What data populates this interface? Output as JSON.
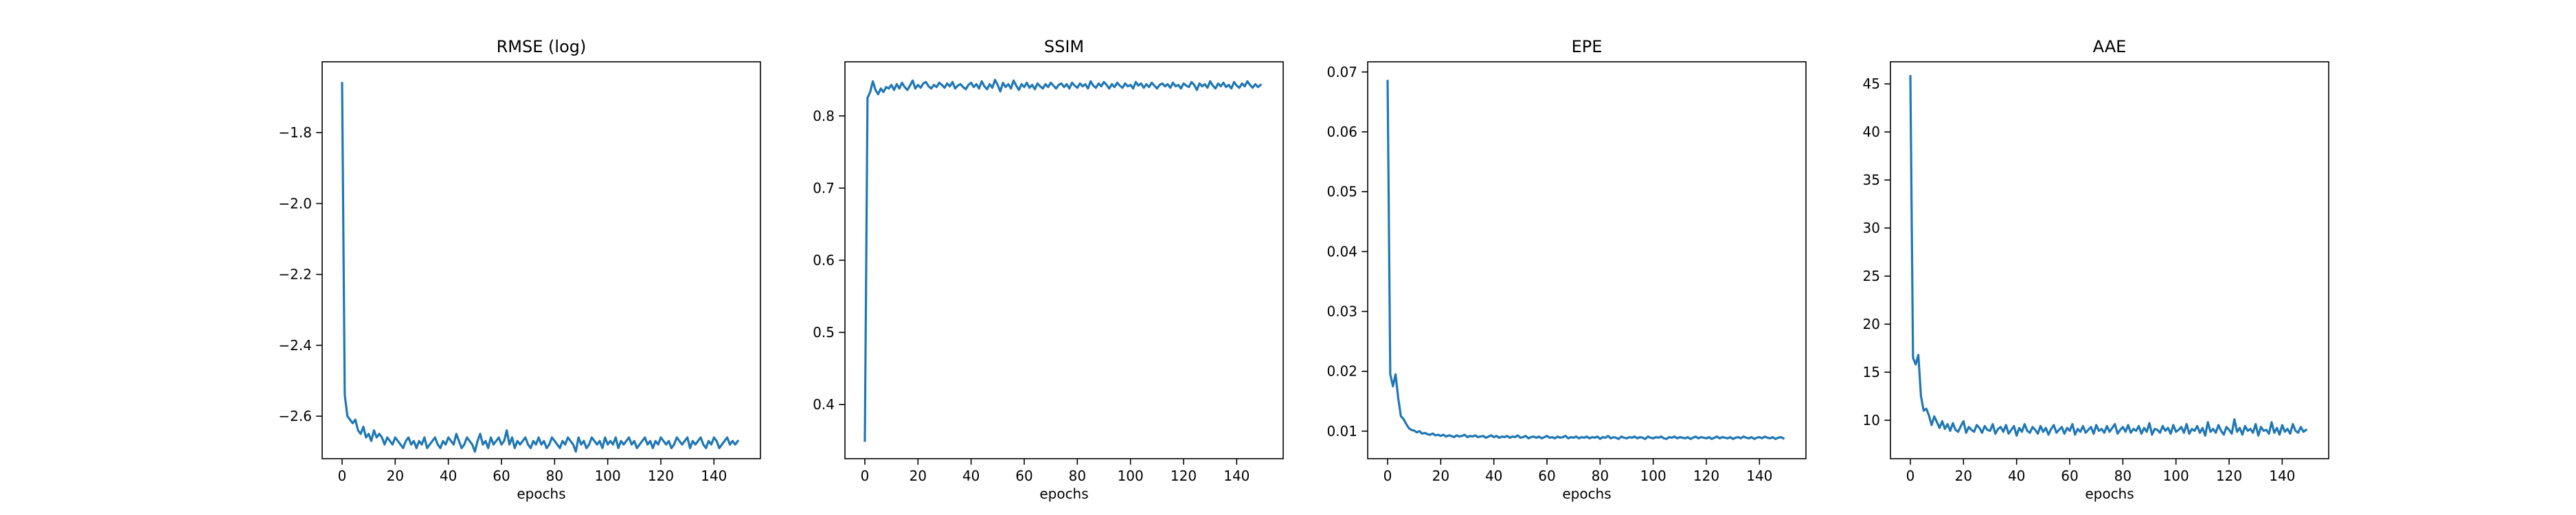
{
  "figure": {
    "background": "#ffffff",
    "line_color": "#1f77b4"
  },
  "chart_data": [
    {
      "type": "line",
      "title": "RMSE (log)",
      "xlabel": "epochs",
      "ylabel": "",
      "xlim": [
        -7.5,
        157.5
      ],
      "ylim": [
        -2.72,
        -1.6
      ],
      "xticks": [
        0,
        20,
        40,
        60,
        80,
        100,
        120,
        140
      ],
      "yticks": [
        -2.6,
        -2.4,
        -2.2,
        -2.0,
        -1.8
      ],
      "yticklabels": [
        "−2.6",
        "−2.4",
        "−2.2",
        "−2.0",
        "−1.8"
      ],
      "grid": false,
      "series": [
        {
          "values": [
            -1.66,
            -2.54,
            -2.6,
            -2.61,
            -2.62,
            -2.61,
            -2.64,
            -2.65,
            -2.63,
            -2.66,
            -2.65,
            -2.67,
            -2.64,
            -2.66,
            -2.65,
            -2.66,
            -2.68,
            -2.66,
            -2.67,
            -2.68,
            -2.66,
            -2.67,
            -2.68,
            -2.69,
            -2.67,
            -2.66,
            -2.68,
            -2.67,
            -2.69,
            -2.67,
            -2.68,
            -2.66,
            -2.69,
            -2.68,
            -2.67,
            -2.66,
            -2.68,
            -2.69,
            -2.67,
            -2.68,
            -2.66,
            -2.67,
            -2.68,
            -2.65,
            -2.67,
            -2.69,
            -2.68,
            -2.66,
            -2.67,
            -2.68,
            -2.7,
            -2.67,
            -2.65,
            -2.68,
            -2.67,
            -2.69,
            -2.66,
            -2.68,
            -2.67,
            -2.66,
            -2.68,
            -2.67,
            -2.64,
            -2.68,
            -2.66,
            -2.69,
            -2.67,
            -2.68,
            -2.67,
            -2.66,
            -2.68,
            -2.69,
            -2.67,
            -2.68,
            -2.66,
            -2.68,
            -2.67,
            -2.69,
            -2.68,
            -2.66,
            -2.67,
            -2.68,
            -2.69,
            -2.67,
            -2.68,
            -2.66,
            -2.67,
            -2.68,
            -2.7,
            -2.66,
            -2.68,
            -2.67,
            -2.69,
            -2.68,
            -2.66,
            -2.67,
            -2.68,
            -2.67,
            -2.69,
            -2.66,
            -2.68,
            -2.67,
            -2.68,
            -2.66,
            -2.69,
            -2.67,
            -2.68,
            -2.67,
            -2.66,
            -2.68,
            -2.67,
            -2.69,
            -2.68,
            -2.67,
            -2.66,
            -2.68,
            -2.67,
            -2.69,
            -2.67,
            -2.68,
            -2.66,
            -2.67,
            -2.68,
            -2.67,
            -2.69,
            -2.68,
            -2.66,
            -2.67,
            -2.68,
            -2.67,
            -2.66,
            -2.69,
            -2.67,
            -2.68,
            -2.67,
            -2.66,
            -2.68,
            -2.69,
            -2.67,
            -2.68,
            -2.66,
            -2.67,
            -2.69,
            -2.68,
            -2.67,
            -2.66,
            -2.68,
            -2.67,
            -2.68,
            -2.67
          ]
        }
      ]
    },
    {
      "type": "line",
      "title": "SSIM",
      "xlabel": "epochs",
      "ylabel": "",
      "xlim": [
        -7.5,
        157.5
      ],
      "ylim": [
        0.325,
        0.875
      ],
      "xticks": [
        0,
        20,
        40,
        60,
        80,
        100,
        120,
        140
      ],
      "yticks": [
        0.4,
        0.5,
        0.6,
        0.7,
        0.8
      ],
      "yticklabels": [
        "0.4",
        "0.5",
        "0.6",
        "0.7",
        "0.8"
      ],
      "grid": false,
      "series": [
        {
          "values": [
            0.35,
            0.825,
            0.833,
            0.848,
            0.836,
            0.83,
            0.838,
            0.833,
            0.84,
            0.838,
            0.843,
            0.836,
            0.844,
            0.838,
            0.846,
            0.84,
            0.836,
            0.842,
            0.849,
            0.838,
            0.843,
            0.839,
            0.845,
            0.847,
            0.841,
            0.838,
            0.843,
            0.84,
            0.846,
            0.843,
            0.839,
            0.845,
            0.841,
            0.847,
            0.838,
            0.842,
            0.844,
            0.84,
            0.837,
            0.843,
            0.846,
            0.84,
            0.844,
            0.838,
            0.848,
            0.841,
            0.837,
            0.844,
            0.839,
            0.85,
            0.843,
            0.834,
            0.846,
            0.84,
            0.844,
            0.838,
            0.849,
            0.842,
            0.836,
            0.844,
            0.84,
            0.846,
            0.839,
            0.843,
            0.837,
            0.845,
            0.841,
            0.838,
            0.844,
            0.84,
            0.846,
            0.842,
            0.838,
            0.843,
            0.845,
            0.84,
            0.844,
            0.838,
            0.846,
            0.842,
            0.839,
            0.845,
            0.841,
            0.844,
            0.838,
            0.848,
            0.842,
            0.839,
            0.845,
            0.841,
            0.847,
            0.843,
            0.838,
            0.844,
            0.84,
            0.846,
            0.842,
            0.839,
            0.845,
            0.841,
            0.843,
            0.838,
            0.847,
            0.842,
            0.845,
            0.839,
            0.844,
            0.84,
            0.846,
            0.842,
            0.838,
            0.843,
            0.845,
            0.841,
            0.844,
            0.839,
            0.846,
            0.841,
            0.843,
            0.838,
            0.845,
            0.842,
            0.84,
            0.847,
            0.843,
            0.836,
            0.845,
            0.841,
            0.844,
            0.839,
            0.848,
            0.842,
            0.838,
            0.845,
            0.841,
            0.846,
            0.84,
            0.843,
            0.838,
            0.847,
            0.842,
            0.839,
            0.845,
            0.841,
            0.848,
            0.843,
            0.839,
            0.844,
            0.84,
            0.843
          ]
        }
      ]
    },
    {
      "type": "line",
      "title": "EPE",
      "xlabel": "epochs",
      "ylabel": "",
      "xlim": [
        -7.5,
        157.5
      ],
      "ylim": [
        0.0054,
        0.0717
      ],
      "xticks": [
        0,
        20,
        40,
        60,
        80,
        100,
        120,
        140
      ],
      "yticks": [
        0.01,
        0.02,
        0.03,
        0.04,
        0.05,
        0.06,
        0.07
      ],
      "yticklabels": [
        "0.01",
        "0.02",
        "0.03",
        "0.04",
        "0.05",
        "0.06",
        "0.07"
      ],
      "grid": false,
      "series": [
        {
          "values": [
            0.0685,
            0.0195,
            0.0175,
            0.0195,
            0.0155,
            0.0125,
            0.012,
            0.0112,
            0.0105,
            0.0102,
            0.0101,
            0.0098,
            0.01,
            0.0096,
            0.0097,
            0.0095,
            0.0094,
            0.0096,
            0.0093,
            0.0094,
            0.0092,
            0.0094,
            0.0091,
            0.0093,
            0.0092,
            0.009,
            0.0093,
            0.0091,
            0.0092,
            0.0094,
            0.009,
            0.0092,
            0.0091,
            0.0093,
            0.009,
            0.0091,
            0.0092,
            0.0089,
            0.0091,
            0.0093,
            0.009,
            0.0092,
            0.0089,
            0.0091,
            0.009,
            0.0092,
            0.0089,
            0.0091,
            0.009,
            0.0093,
            0.0089,
            0.009,
            0.0092,
            0.0088,
            0.009,
            0.0091,
            0.0089,
            0.0091,
            0.0088,
            0.009,
            0.0092,
            0.0089,
            0.009,
            0.0088,
            0.0091,
            0.0089,
            0.009,
            0.0092,
            0.0088,
            0.009,
            0.0089,
            0.0091,
            0.0088,
            0.009,
            0.0089,
            0.0091,
            0.0088,
            0.009,
            0.0089,
            0.0091,
            0.0087,
            0.009,
            0.0089,
            0.0092,
            0.0088,
            0.009,
            0.0089,
            0.0087,
            0.0091,
            0.0089,
            0.0088,
            0.009,
            0.0089,
            0.0091,
            0.0088,
            0.009,
            0.0089,
            0.0087,
            0.0091,
            0.0089,
            0.0088,
            0.009,
            0.0089,
            0.0091,
            0.0088,
            0.0087,
            0.009,
            0.0089,
            0.0091,
            0.0088,
            0.009,
            0.0089,
            0.0088,
            0.009,
            0.0087,
            0.0089,
            0.0091,
            0.0088,
            0.009,
            0.0089,
            0.0088,
            0.009,
            0.0087,
            0.0089,
            0.0091,
            0.0088,
            0.009,
            0.0089,
            0.0088,
            0.009,
            0.0087,
            0.0089,
            0.009,
            0.0088,
            0.0091,
            0.0089,
            0.0088,
            0.009,
            0.0087,
            0.0089,
            0.009,
            0.0088,
            0.0091,
            0.0089,
            0.0088,
            0.009,
            0.0087,
            0.0089,
            0.009,
            0.0088
          ]
        }
      ]
    },
    {
      "type": "line",
      "title": "AAE",
      "xlabel": "epochs",
      "ylabel": "",
      "xlim": [
        -7.5,
        157.5
      ],
      "ylim": [
        6.0,
        47.3
      ],
      "xticks": [
        0,
        20,
        40,
        60,
        80,
        100,
        120,
        140
      ],
      "yticks": [
        10,
        15,
        20,
        25,
        30,
        35,
        40,
        45
      ],
      "yticklabels": [
        "10",
        "15",
        "20",
        "25",
        "30",
        "35",
        "40",
        "45"
      ],
      "grid": false,
      "series": [
        {
          "values": [
            45.8,
            16.5,
            15.8,
            16.8,
            12.5,
            11.0,
            11.2,
            10.5,
            9.5,
            10.4,
            9.8,
            9.2,
            9.9,
            9.1,
            9.6,
            8.9,
            9.7,
            9.0,
            8.8,
            9.4,
            9.9,
            8.7,
            9.3,
            9.0,
            8.8,
            9.5,
            9.2,
            8.7,
            9.4,
            9.0,
            8.9,
            9.6,
            8.6,
            9.1,
            9.3,
            8.8,
            9.5,
            8.6,
            9.0,
            9.4,
            8.4,
            9.2,
            8.8,
            9.6,
            8.9,
            8.7,
            9.3,
            9.0,
            8.6,
            9.4,
            8.8,
            9.2,
            8.5,
            9.1,
            9.5,
            8.7,
            9.0,
            9.3,
            8.6,
            9.2,
            8.9,
            9.6,
            8.5,
            9.1,
            8.8,
            9.4,
            8.7,
            9.0,
            9.3,
            8.6,
            9.5,
            8.9,
            9.1,
            8.7,
            9.4,
            8.8,
            9.2,
            9.6,
            8.6,
            9.0,
            9.3,
            8.8,
            9.5,
            8.7,
            9.1,
            8.9,
            9.4,
            8.6,
            9.2,
            8.8,
            9.7,
            8.5,
            9.1,
            9.0,
            8.7,
            9.4,
            8.9,
            9.2,
            8.6,
            9.5,
            8.8,
            9.0,
            9.3,
            8.7,
            9.6,
            8.6,
            9.1,
            8.9,
            9.4,
            8.7,
            9.2,
            8.4,
            9.8,
            8.8,
            9.1,
            8.7,
            9.5,
            8.9,
            8.5,
            9.3,
            9.0,
            8.6,
            10.1,
            8.8,
            9.2,
            8.5,
            9.4,
            8.9,
            9.1,
            8.7,
            9.6,
            8.4,
            9.3,
            8.9,
            9.0,
            8.6,
            9.8,
            8.7,
            9.2,
            8.5,
            9.5,
            8.8,
            9.1,
            8.6,
            9.6,
            8.9,
            8.7,
            9.3,
            8.8,
            9.0
          ]
        }
      ]
    }
  ]
}
